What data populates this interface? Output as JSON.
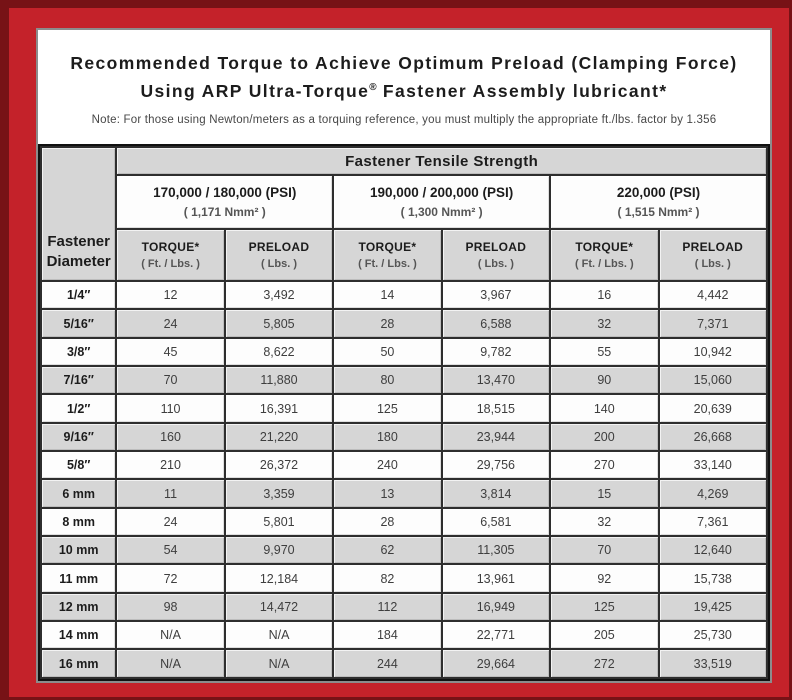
{
  "title": {
    "line1": "Recommended Torque to Achieve Optimum Preload (Clamping Force)",
    "line2_pre": "Using ARP Ultra-Torque",
    "line2_reg": "®",
    "line2_post": " Fastener Assembly lubricant*",
    "note": "Note: For those using Newton/meters as a torquing reference, you must multiply the appropriate ft./lbs. factor by 1.356"
  },
  "table": {
    "corner_header": "Fastener Diameter",
    "tensile_header": "Fastener Tensile Strength",
    "groups": [
      {
        "psi": "170,000 / 180,000 (PSI)",
        "nmm": "( 1,171 Nmm² )"
      },
      {
        "psi": "190,000 / 200,000 (PSI)",
        "nmm": "( 1,300 Nmm² )"
      },
      {
        "psi": "220,000 (PSI)",
        "nmm": "( 1,515 Nmm² )"
      }
    ],
    "col_headers": [
      {
        "label": "TORQUE*",
        "unit": "( Ft. / Lbs. )"
      },
      {
        "label": "PRELOAD",
        "unit": "( Lbs. )"
      }
    ],
    "rows": [
      {
        "diameter": "1/4″",
        "values": [
          "12",
          "3,492",
          "14",
          "3,967",
          "16",
          "4,442"
        ]
      },
      {
        "diameter": "5/16″",
        "values": [
          "24",
          "5,805",
          "28",
          "6,588",
          "32",
          "7,371"
        ]
      },
      {
        "diameter": "3/8″",
        "values": [
          "45",
          "8,622",
          "50",
          "9,782",
          "55",
          "10,942"
        ]
      },
      {
        "diameter": "7/16″",
        "values": [
          "70",
          "11,880",
          "80",
          "13,470",
          "90",
          "15,060"
        ]
      },
      {
        "diameter": "1/2″",
        "values": [
          "110",
          "16,391",
          "125",
          "18,515",
          "140",
          "20,639"
        ]
      },
      {
        "diameter": "9/16″",
        "values": [
          "160",
          "21,220",
          "180",
          "23,944",
          "200",
          "26,668"
        ]
      },
      {
        "diameter": "5/8″",
        "values": [
          "210",
          "26,372",
          "240",
          "29,756",
          "270",
          "33,140"
        ]
      },
      {
        "diameter": "6 mm",
        "values": [
          "11",
          "3,359",
          "13",
          "3,814",
          "15",
          "4,269"
        ]
      },
      {
        "diameter": "8 mm",
        "values": [
          "24",
          "5,801",
          "28",
          "6,581",
          "32",
          "7,361"
        ]
      },
      {
        "diameter": "10 mm",
        "values": [
          "54",
          "9,970",
          "62",
          "11,305",
          "70",
          "12,640"
        ]
      },
      {
        "diameter": "11 mm",
        "values": [
          "72",
          "12,184",
          "82",
          "13,961",
          "92",
          "15,738"
        ]
      },
      {
        "diameter": "12 mm",
        "values": [
          "98",
          "14,472",
          "112",
          "16,949",
          "125",
          "19,425"
        ]
      },
      {
        "diameter": "14 mm",
        "values": [
          "N/A",
          "N/A",
          "184",
          "22,771",
          "205",
          "25,730"
        ]
      },
      {
        "diameter": "16 mm",
        "values": [
          "N/A",
          "N/A",
          "244",
          "29,664",
          "272",
          "33,519"
        ]
      }
    ]
  },
  "colors": {
    "frame_dark": "#771216",
    "frame_red": "#c4222a",
    "panel_border": "#8c8c8c",
    "grid_dark": "#2e2e2e",
    "cell_gray": "#d6d6d6",
    "cell_white": "#fdfdfd",
    "text_dark": "#1c1c1c",
    "text_value": "#3e3e3e",
    "text_unit": "#555555"
  }
}
